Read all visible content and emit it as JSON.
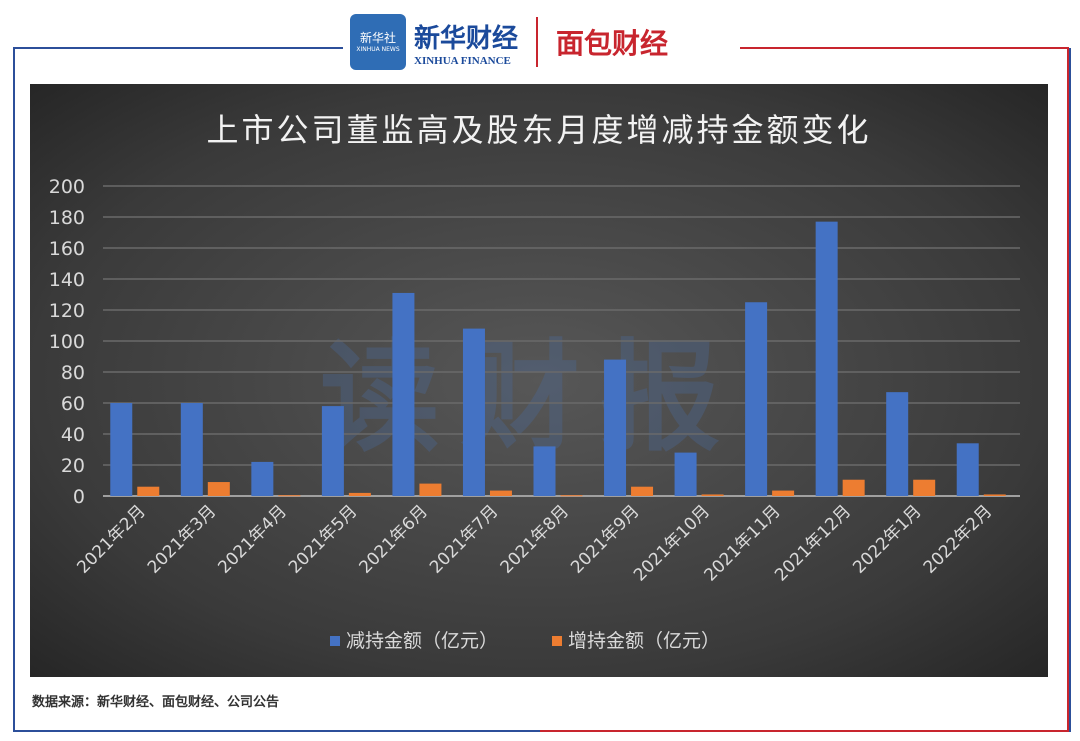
{
  "header": {
    "xinhua_agency": "新华社",
    "xinhua_news": "XINHUA NEWS",
    "xinhua_finance_cn": "新华财经",
    "xinhua_finance_en": "XINHUA FINANCE",
    "mianbao": "面包财经"
  },
  "watermark": "读财报",
  "source": "数据来源：新华财经、面包财经、公司公告",
  "colors": {
    "decrease": "#4472c4",
    "increase": "#ed7d31",
    "frame_left": "#2c4f9a",
    "frame_right": "#c8252e"
  },
  "chart_data": {
    "type": "bar",
    "title": "上市公司董监高及股东月度增减持金额变化",
    "categories": [
      "2021年2月",
      "2021年3月",
      "2021年4月",
      "2021年5月",
      "2021年6月",
      "2021年7月",
      "2021年8月",
      "2021年9月",
      "2021年10月",
      "2021年11月",
      "2021年12月",
      "2022年1月",
      "2022年2月"
    ],
    "series": [
      {
        "name": "减持金额（亿元）",
        "values": [
          60,
          60,
          22,
          58,
          131,
          108,
          32,
          88,
          28,
          125,
          177,
          67,
          34
        ]
      },
      {
        "name": "增持金额（亿元）",
        "values": [
          6,
          9,
          0.5,
          2,
          8,
          3.5,
          0.5,
          6,
          1,
          3.5,
          10.5,
          10.5,
          1
        ]
      }
    ],
    "ylim": [
      0,
      200
    ],
    "yticks": [
      0,
      20,
      40,
      60,
      80,
      100,
      120,
      140,
      160,
      180,
      200
    ],
    "grid": true,
    "legend": "bottom"
  }
}
